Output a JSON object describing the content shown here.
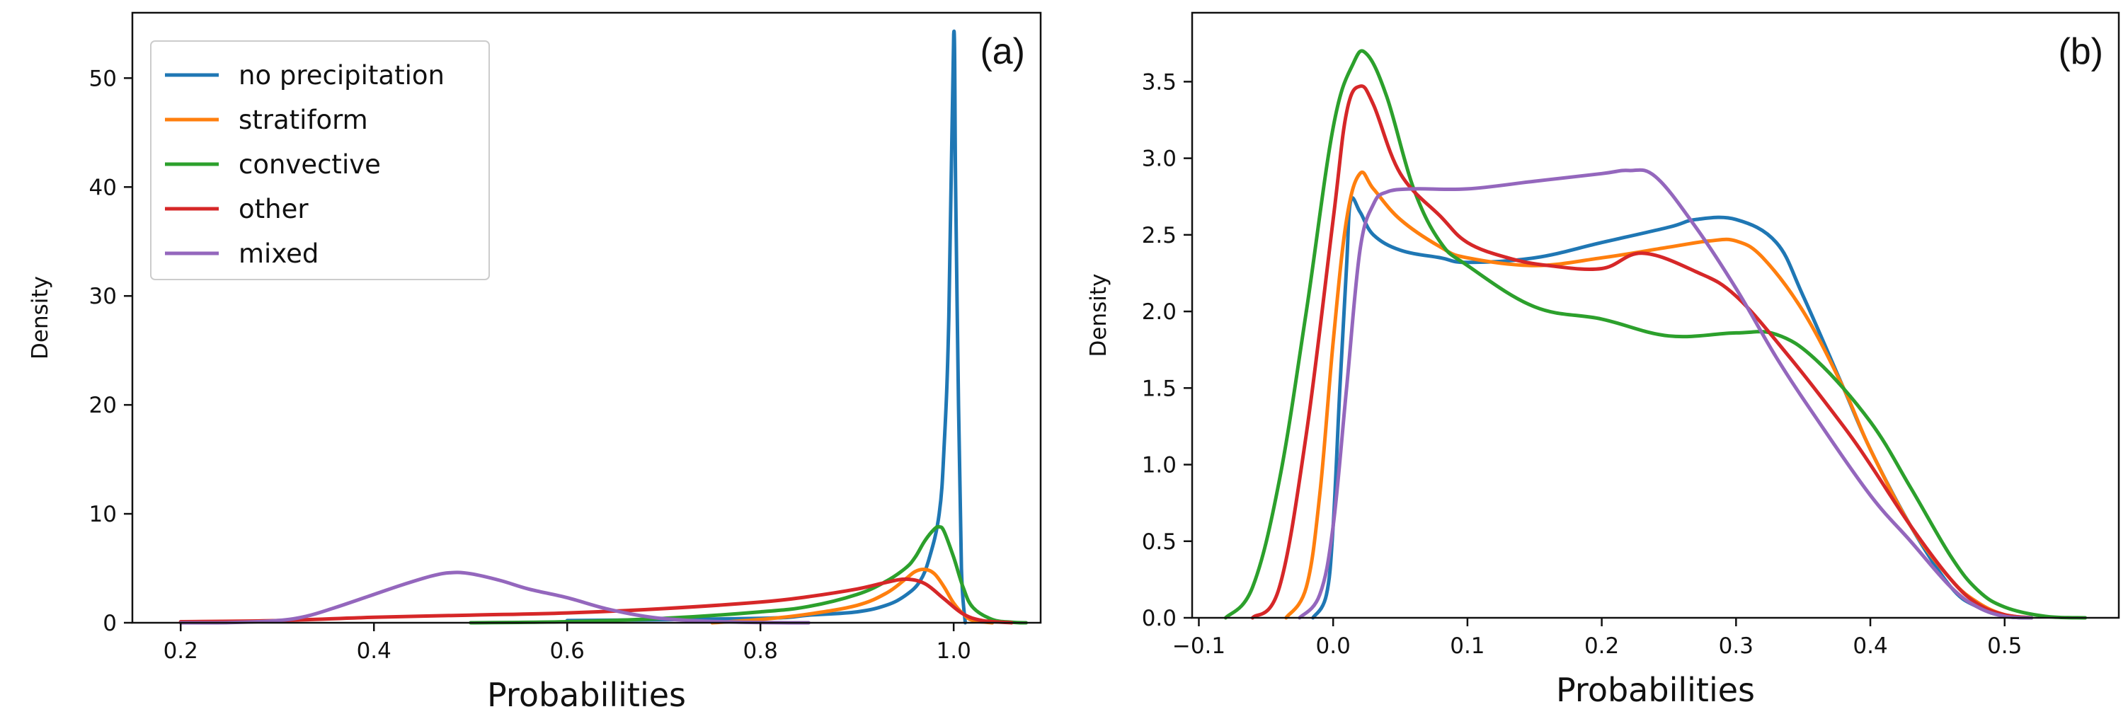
{
  "chart_data": [
    {
      "type": "line",
      "panel_label": "(a)",
      "xlabel": "Probabilities",
      "ylabel": "Density",
      "xlim": [
        0.15,
        1.09
      ],
      "ylim": [
        0,
        56
      ],
      "xticks": [
        0.2,
        0.4,
        0.6,
        0.8,
        1.0
      ],
      "xtick_labels": [
        "0.2",
        "0.4",
        "0.6",
        "0.8",
        "1.0"
      ],
      "yticks": [
        0,
        10,
        20,
        30,
        40,
        50
      ],
      "ytick_labels": [
        "0",
        "10",
        "20",
        "30",
        "40",
        "50"
      ],
      "legend": {
        "position": "top-left",
        "entries": [
          "no precipitation",
          "stratiform",
          "convective",
          "other",
          "mixed"
        ]
      },
      "series": [
        {
          "name": "no precipitation",
          "color": "#1f77b4",
          "x": [
            0.6,
            0.8,
            0.85,
            0.9,
            0.93,
            0.95,
            0.965,
            0.975,
            0.985,
            0.99,
            0.995,
            1.0,
            1.002,
            1.005,
            1.008,
            1.012
          ],
          "y": [
            0.2,
            0.4,
            0.7,
            1.0,
            1.6,
            2.5,
            3.8,
            6,
            10,
            16,
            28,
            54,
            40,
            20,
            5,
            0
          ]
        },
        {
          "name": "stratiform",
          "color": "#ff7f0e",
          "x": [
            0.75,
            0.8,
            0.85,
            0.9,
            0.93,
            0.95,
            0.96,
            0.97,
            0.98,
            0.99,
            1.0,
            1.01,
            1.02,
            1.04
          ],
          "y": [
            0,
            0.3,
            0.8,
            1.6,
            2.7,
            4.0,
            4.7,
            4.9,
            4.5,
            3.3,
            1.8,
            0.8,
            0.2,
            0
          ]
        },
        {
          "name": "convective",
          "color": "#2ca02c",
          "x": [
            0.5,
            0.6,
            0.7,
            0.8,
            0.85,
            0.9,
            0.93,
            0.95,
            0.96,
            0.97,
            0.98,
            0.985,
            0.99,
            1.0,
            1.01,
            1.02,
            1.04,
            1.06,
            1.075
          ],
          "y": [
            0,
            0.1,
            0.4,
            1.0,
            1.5,
            2.6,
            3.8,
            5.0,
            6.0,
            7.5,
            8.6,
            8.8,
            8.4,
            6.0,
            3.2,
            1.4,
            0.3,
            0.05,
            0
          ]
        },
        {
          "name": "other",
          "color": "#d62728",
          "x": [
            0.2,
            0.3,
            0.4,
            0.5,
            0.6,
            0.7,
            0.8,
            0.85,
            0.9,
            0.93,
            0.95,
            0.97,
            0.99,
            1.01,
            1.03,
            1.06
          ],
          "y": [
            0.1,
            0.2,
            0.5,
            0.7,
            0.9,
            1.3,
            1.9,
            2.4,
            3.1,
            3.7,
            4.0,
            3.6,
            2.2,
            0.8,
            0.2,
            0
          ]
        },
        {
          "name": "mixed",
          "color": "#9467bd",
          "x": [
            0.2,
            0.25,
            0.3,
            0.33,
            0.36,
            0.4,
            0.43,
            0.46,
            0.48,
            0.5,
            0.53,
            0.56,
            0.6,
            0.64,
            0.68,
            0.72,
            0.78,
            0.85
          ],
          "y": [
            0,
            0.02,
            0.2,
            0.6,
            1.4,
            2.6,
            3.5,
            4.3,
            4.6,
            4.5,
            3.9,
            3.1,
            2.3,
            1.3,
            0.6,
            0.25,
            0.05,
            0
          ]
        }
      ]
    },
    {
      "type": "line",
      "panel_label": "(b)",
      "xlabel": "Probabilities",
      "ylabel": "Density",
      "xlim": [
        -0.105,
        0.585
      ],
      "ylim": [
        0,
        3.95
      ],
      "xticks": [
        -0.1,
        0.0,
        0.1,
        0.2,
        0.3,
        0.4,
        0.5
      ],
      "xtick_labels": [
        "−0.1",
        "0.0",
        "0.1",
        "0.2",
        "0.3",
        "0.4",
        "0.5"
      ],
      "yticks": [
        0,
        0.5,
        1.0,
        1.5,
        2.0,
        2.5,
        3.0,
        3.5
      ],
      "ytick_labels": [
        "0.0",
        "0.5",
        "1.0",
        "1.5",
        "2.0",
        "2.5",
        "3.0",
        "3.5"
      ],
      "series": [
        {
          "name": "no precipitation",
          "color": "#1f77b4",
          "x": [
            -0.015,
            -0.005,
            0.0,
            0.005,
            0.01,
            0.013,
            0.02,
            0.03,
            0.05,
            0.08,
            0.1,
            0.15,
            0.2,
            0.25,
            0.27,
            0.3,
            0.33,
            0.35,
            0.38,
            0.4,
            0.43,
            0.46,
            0.48,
            0.5,
            0.52
          ],
          "y": [
            0,
            0.15,
            0.6,
            1.5,
            2.3,
            2.72,
            2.65,
            2.5,
            2.4,
            2.35,
            2.32,
            2.35,
            2.45,
            2.55,
            2.6,
            2.6,
            2.45,
            2.1,
            1.5,
            1.1,
            0.6,
            0.2,
            0.07,
            0.01,
            0
          ]
        },
        {
          "name": "stratiform",
          "color": "#ff7f0e",
          "x": [
            -0.035,
            -0.02,
            -0.01,
            0.0,
            0.01,
            0.02,
            0.03,
            0.05,
            0.08,
            0.1,
            0.15,
            0.2,
            0.25,
            0.28,
            0.3,
            0.32,
            0.35,
            0.38,
            0.4,
            0.43,
            0.46,
            0.48,
            0.5,
            0.52
          ],
          "y": [
            0,
            0.2,
            0.8,
            1.8,
            2.6,
            2.9,
            2.8,
            2.6,
            2.42,
            2.35,
            2.3,
            2.35,
            2.42,
            2.46,
            2.46,
            2.35,
            2.0,
            1.5,
            1.1,
            0.6,
            0.25,
            0.1,
            0.02,
            0
          ]
        },
        {
          "name": "convective",
          "color": "#2ca02c",
          "x": [
            -0.08,
            -0.06,
            -0.04,
            -0.02,
            0.0,
            0.015,
            0.025,
            0.04,
            0.06,
            0.08,
            0.1,
            0.15,
            0.2,
            0.25,
            0.3,
            0.33,
            0.36,
            0.4,
            0.43,
            0.46,
            0.48,
            0.5,
            0.53,
            0.56
          ],
          "y": [
            0,
            0.2,
            0.9,
            2.0,
            3.2,
            3.62,
            3.68,
            3.4,
            2.8,
            2.45,
            2.3,
            2.03,
            1.95,
            1.84,
            1.86,
            1.85,
            1.68,
            1.28,
            0.85,
            0.4,
            0.18,
            0.07,
            0.01,
            0
          ]
        },
        {
          "name": "other",
          "color": "#d62728",
          "x": [
            -0.06,
            -0.04,
            -0.02,
            0.0,
            0.01,
            0.02,
            0.03,
            0.05,
            0.08,
            0.1,
            0.13,
            0.16,
            0.2,
            0.23,
            0.27,
            0.3,
            0.34,
            0.38,
            0.4,
            0.43,
            0.46,
            0.48,
            0.5,
            0.52
          ],
          "y": [
            0,
            0.2,
            1.2,
            2.6,
            3.3,
            3.47,
            3.35,
            2.9,
            2.62,
            2.45,
            2.35,
            2.3,
            2.28,
            2.38,
            2.26,
            2.1,
            1.7,
            1.25,
            1.0,
            0.6,
            0.25,
            0.09,
            0.02,
            0
          ]
        },
        {
          "name": "mixed",
          "color": "#9467bd",
          "x": [
            -0.025,
            -0.01,
            0.0,
            0.01,
            0.02,
            0.03,
            0.04,
            0.06,
            0.1,
            0.15,
            0.2,
            0.22,
            0.24,
            0.27,
            0.3,
            0.33,
            0.36,
            0.4,
            0.43,
            0.46,
            0.48,
            0.5,
            0.52
          ],
          "y": [
            0,
            0.15,
            0.6,
            1.5,
            2.4,
            2.7,
            2.78,
            2.8,
            2.8,
            2.85,
            2.9,
            2.92,
            2.88,
            2.55,
            2.15,
            1.7,
            1.3,
            0.8,
            0.5,
            0.2,
            0.07,
            0.01,
            0
          ]
        }
      ]
    }
  ]
}
